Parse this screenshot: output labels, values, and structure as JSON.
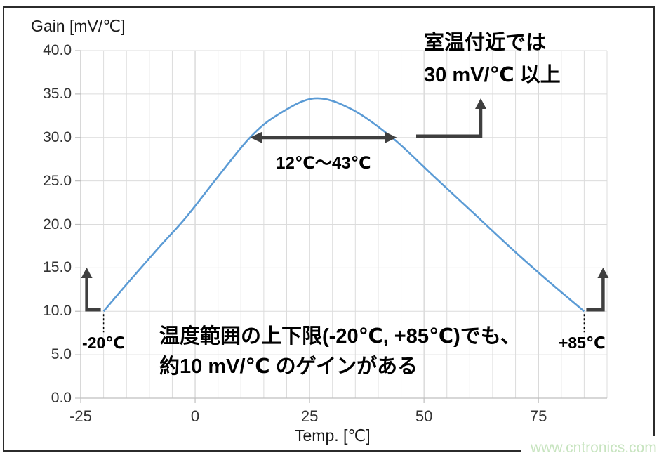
{
  "chart_data": {
    "type": "line",
    "title": "Gain [mV/℃]",
    "xlabel": "Temp. [℃]",
    "ylabel": "Gain [mV/℃]",
    "xlim": [
      -25,
      90
    ],
    "ylim": [
      0,
      40
    ],
    "x_ticks": [
      -25,
      0,
      25,
      50,
      75
    ],
    "y_ticks": [
      0,
      5,
      10,
      15,
      20,
      25,
      30,
      35,
      40
    ],
    "y_tick_labels": [
      "0.0",
      "5.0",
      "10.0",
      "15.0",
      "20.0",
      "25.0",
      "30.0",
      "35.0",
      "40.0"
    ],
    "grid": true,
    "grid_step_x": 5,
    "grid_step_y": 5,
    "grid_color": "#dcdcdc",
    "grid_major_color": "#c9c9c9",
    "axis_color": "#bfbfbf",
    "line_color": "#5B9BD5",
    "series": [
      {
        "name": "Gain",
        "points": [
          [
            -20,
            10
          ],
          [
            -14,
            13.7
          ],
          [
            -8,
            17.3
          ],
          [
            -2,
            20.8
          ],
          [
            5,
            25.5
          ],
          [
            12,
            30
          ],
          [
            18,
            32.6
          ],
          [
            26,
            34.5
          ],
          [
            34,
            33.3
          ],
          [
            43,
            30
          ],
          [
            52,
            25.6
          ],
          [
            61,
            21.2
          ],
          [
            70,
            16.8
          ],
          [
            78,
            13.1
          ],
          [
            85,
            10
          ]
        ]
      }
    ],
    "annotations": {
      "arrow_color": "#3f3f3f",
      "range_arrow": {
        "gain": 30,
        "t_start": 12,
        "t_end": 43,
        "label": "12℃～43℃"
      },
      "room_note": {
        "line1": "室温付近では",
        "line2": "30 mV/℃ 以上"
      },
      "low_end": {
        "t": -20,
        "gain": 10,
        "label": "-20℃"
      },
      "high_end": {
        "t": 85,
        "gain": 10,
        "label": "+85℃"
      },
      "bottom_note": {
        "line1": "温度範囲の上下限(-20℃, +85℃)でも、",
        "line2": "約10 mV/℃ のゲインがある"
      }
    }
  },
  "watermark": {
    "text": "www.cntronics.com",
    "color": "#c7e4bf"
  }
}
